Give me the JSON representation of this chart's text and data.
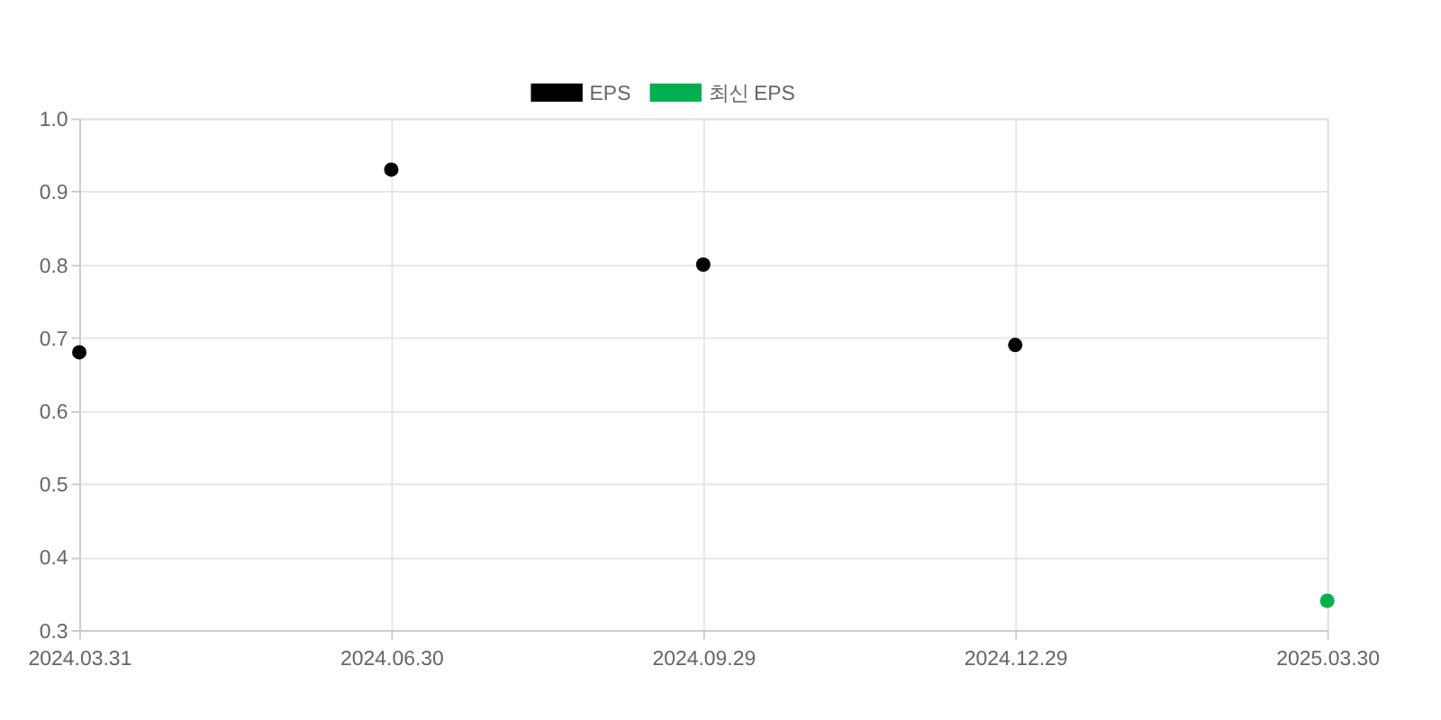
{
  "chart_data": {
    "type": "scatter",
    "categories": [
      "2024.03.31",
      "2024.06.30",
      "2024.09.29",
      "2024.12.29",
      "2025.03.30"
    ],
    "series": [
      {
        "name": "EPS",
        "color": "#000000",
        "values": [
          0.68,
          0.93,
          0.8,
          0.69,
          null
        ]
      },
      {
        "name": "최신 EPS",
        "color": "#00b050",
        "values": [
          null,
          null,
          null,
          null,
          0.34
        ]
      }
    ],
    "ylim": [
      0.3,
      1.0
    ],
    "yticks": [
      {
        "value": 0.3,
        "label": "0.3"
      },
      {
        "value": 0.4,
        "label": "0.4"
      },
      {
        "value": 0.5,
        "label": "0.5"
      },
      {
        "value": 0.6,
        "label": "0.6"
      },
      {
        "value": 0.7,
        "label": "0.7"
      },
      {
        "value": 0.8,
        "label": "0.8"
      },
      {
        "value": 0.9,
        "label": "0.9"
      },
      {
        "value": 1.0,
        "label": "1.0"
      }
    ],
    "grid": true,
    "legend": "top",
    "marker": "circle"
  }
}
